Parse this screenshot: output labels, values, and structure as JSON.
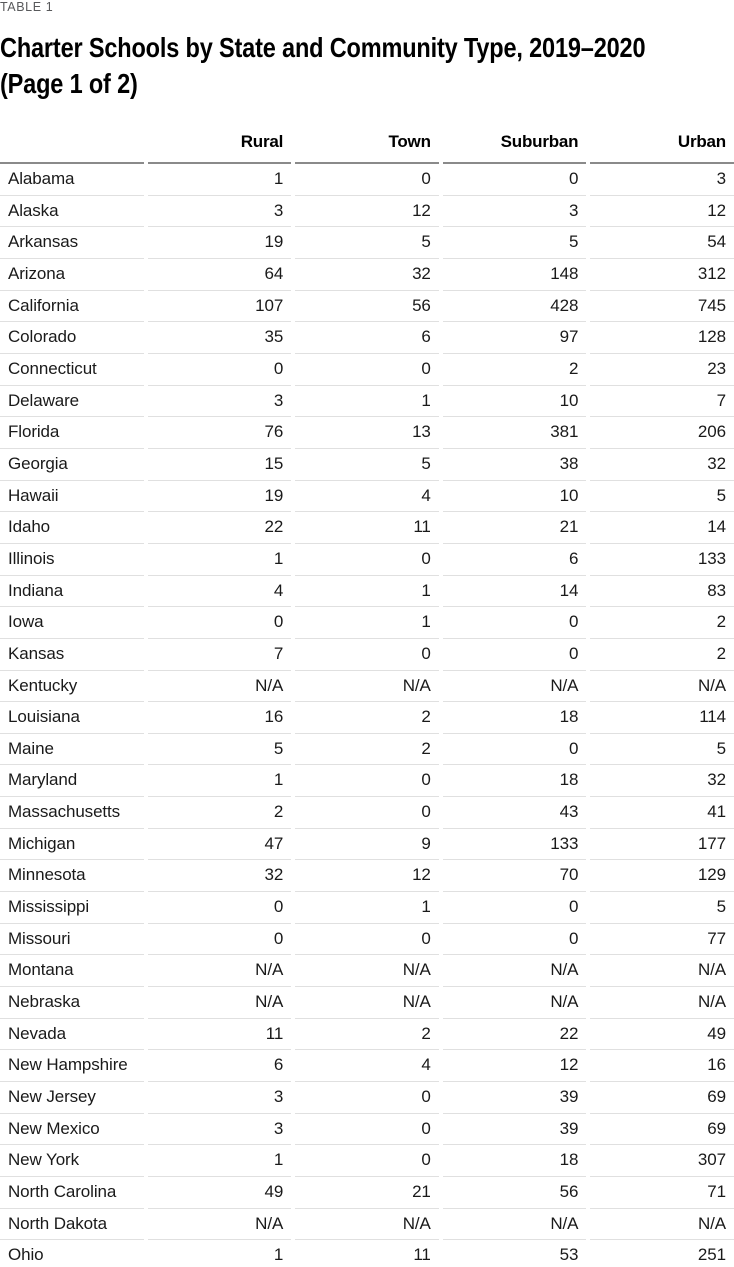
{
  "table_label": "TABLE 1",
  "title_line1": "Charter Schools by State and Community Type, 2019–2020",
  "title_line2": "(Page 1 of 2)",
  "chart_data": {
    "type": "table",
    "title": "Charter Schools by State and Community Type, 2019–2020 (Page 1 of 2)",
    "columns": [
      "Rural",
      "Town",
      "Suburban",
      "Urban"
    ],
    "rows": [
      {
        "state": "Alabama",
        "values": [
          1,
          0,
          0,
          3
        ]
      },
      {
        "state": "Alaska",
        "values": [
          3,
          12,
          3,
          12
        ]
      },
      {
        "state": "Arkansas",
        "values": [
          19,
          5,
          5,
          54
        ]
      },
      {
        "state": "Arizona",
        "values": [
          64,
          32,
          148,
          312
        ]
      },
      {
        "state": "California",
        "values": [
          107,
          56,
          428,
          745
        ]
      },
      {
        "state": "Colorado",
        "values": [
          35,
          6,
          97,
          128
        ]
      },
      {
        "state": "Connecticut",
        "values": [
          0,
          0,
          2,
          23
        ]
      },
      {
        "state": "Delaware",
        "values": [
          3,
          1,
          10,
          7
        ]
      },
      {
        "state": "Florida",
        "values": [
          76,
          13,
          381,
          206
        ]
      },
      {
        "state": "Georgia",
        "values": [
          15,
          5,
          38,
          32
        ]
      },
      {
        "state": "Hawaii",
        "values": [
          19,
          4,
          10,
          5
        ]
      },
      {
        "state": "Idaho",
        "values": [
          22,
          11,
          21,
          14
        ]
      },
      {
        "state": "Illinois",
        "values": [
          1,
          0,
          6,
          133
        ]
      },
      {
        "state": "Indiana",
        "values": [
          4,
          1,
          14,
          83
        ]
      },
      {
        "state": "Iowa",
        "values": [
          0,
          1,
          0,
          2
        ]
      },
      {
        "state": "Kansas",
        "values": [
          7,
          0,
          0,
          2
        ]
      },
      {
        "state": "Kentucky",
        "values": [
          "N/A",
          "N/A",
          "N/A",
          "N/A"
        ]
      },
      {
        "state": "Louisiana",
        "values": [
          16,
          2,
          18,
          114
        ]
      },
      {
        "state": "Maine",
        "values": [
          5,
          2,
          0,
          5
        ]
      },
      {
        "state": "Maryland",
        "values": [
          1,
          0,
          18,
          32
        ]
      },
      {
        "state": "Massachusetts",
        "values": [
          2,
          0,
          43,
          41
        ]
      },
      {
        "state": "Michigan",
        "values": [
          47,
          9,
          133,
          177
        ]
      },
      {
        "state": "Minnesota",
        "values": [
          32,
          12,
          70,
          129
        ]
      },
      {
        "state": "Mississippi",
        "values": [
          0,
          1,
          0,
          5
        ]
      },
      {
        "state": "Missouri",
        "values": [
          0,
          0,
          0,
          77
        ]
      },
      {
        "state": "Montana",
        "values": [
          "N/A",
          "N/A",
          "N/A",
          "N/A"
        ]
      },
      {
        "state": "Nebraska",
        "values": [
          "N/A",
          "N/A",
          "N/A",
          "N/A"
        ]
      },
      {
        "state": "Nevada",
        "values": [
          11,
          2,
          22,
          49
        ]
      },
      {
        "state": "New Hampshire",
        "values": [
          6,
          4,
          12,
          16
        ]
      },
      {
        "state": "New Jersey",
        "values": [
          3,
          0,
          39,
          69
        ]
      },
      {
        "state": "New Mexico",
        "values": [
          3,
          0,
          39,
          69
        ]
      },
      {
        "state": "New York",
        "values": [
          1,
          0,
          18,
          307
        ]
      },
      {
        "state": "North Carolina",
        "values": [
          49,
          21,
          56,
          71
        ]
      },
      {
        "state": "North Dakota",
        "values": [
          "N/A",
          "N/A",
          "N/A",
          "N/A"
        ]
      },
      {
        "state": "Ohio",
        "values": [
          1,
          11,
          53,
          251
        ]
      }
    ]
  },
  "colors": {
    "text": "#1a1a1a",
    "title": "#000000",
    "label_gray": "#58595b",
    "header_rule": "#8a8a8a",
    "row_divider": "#e0e0e0"
  }
}
